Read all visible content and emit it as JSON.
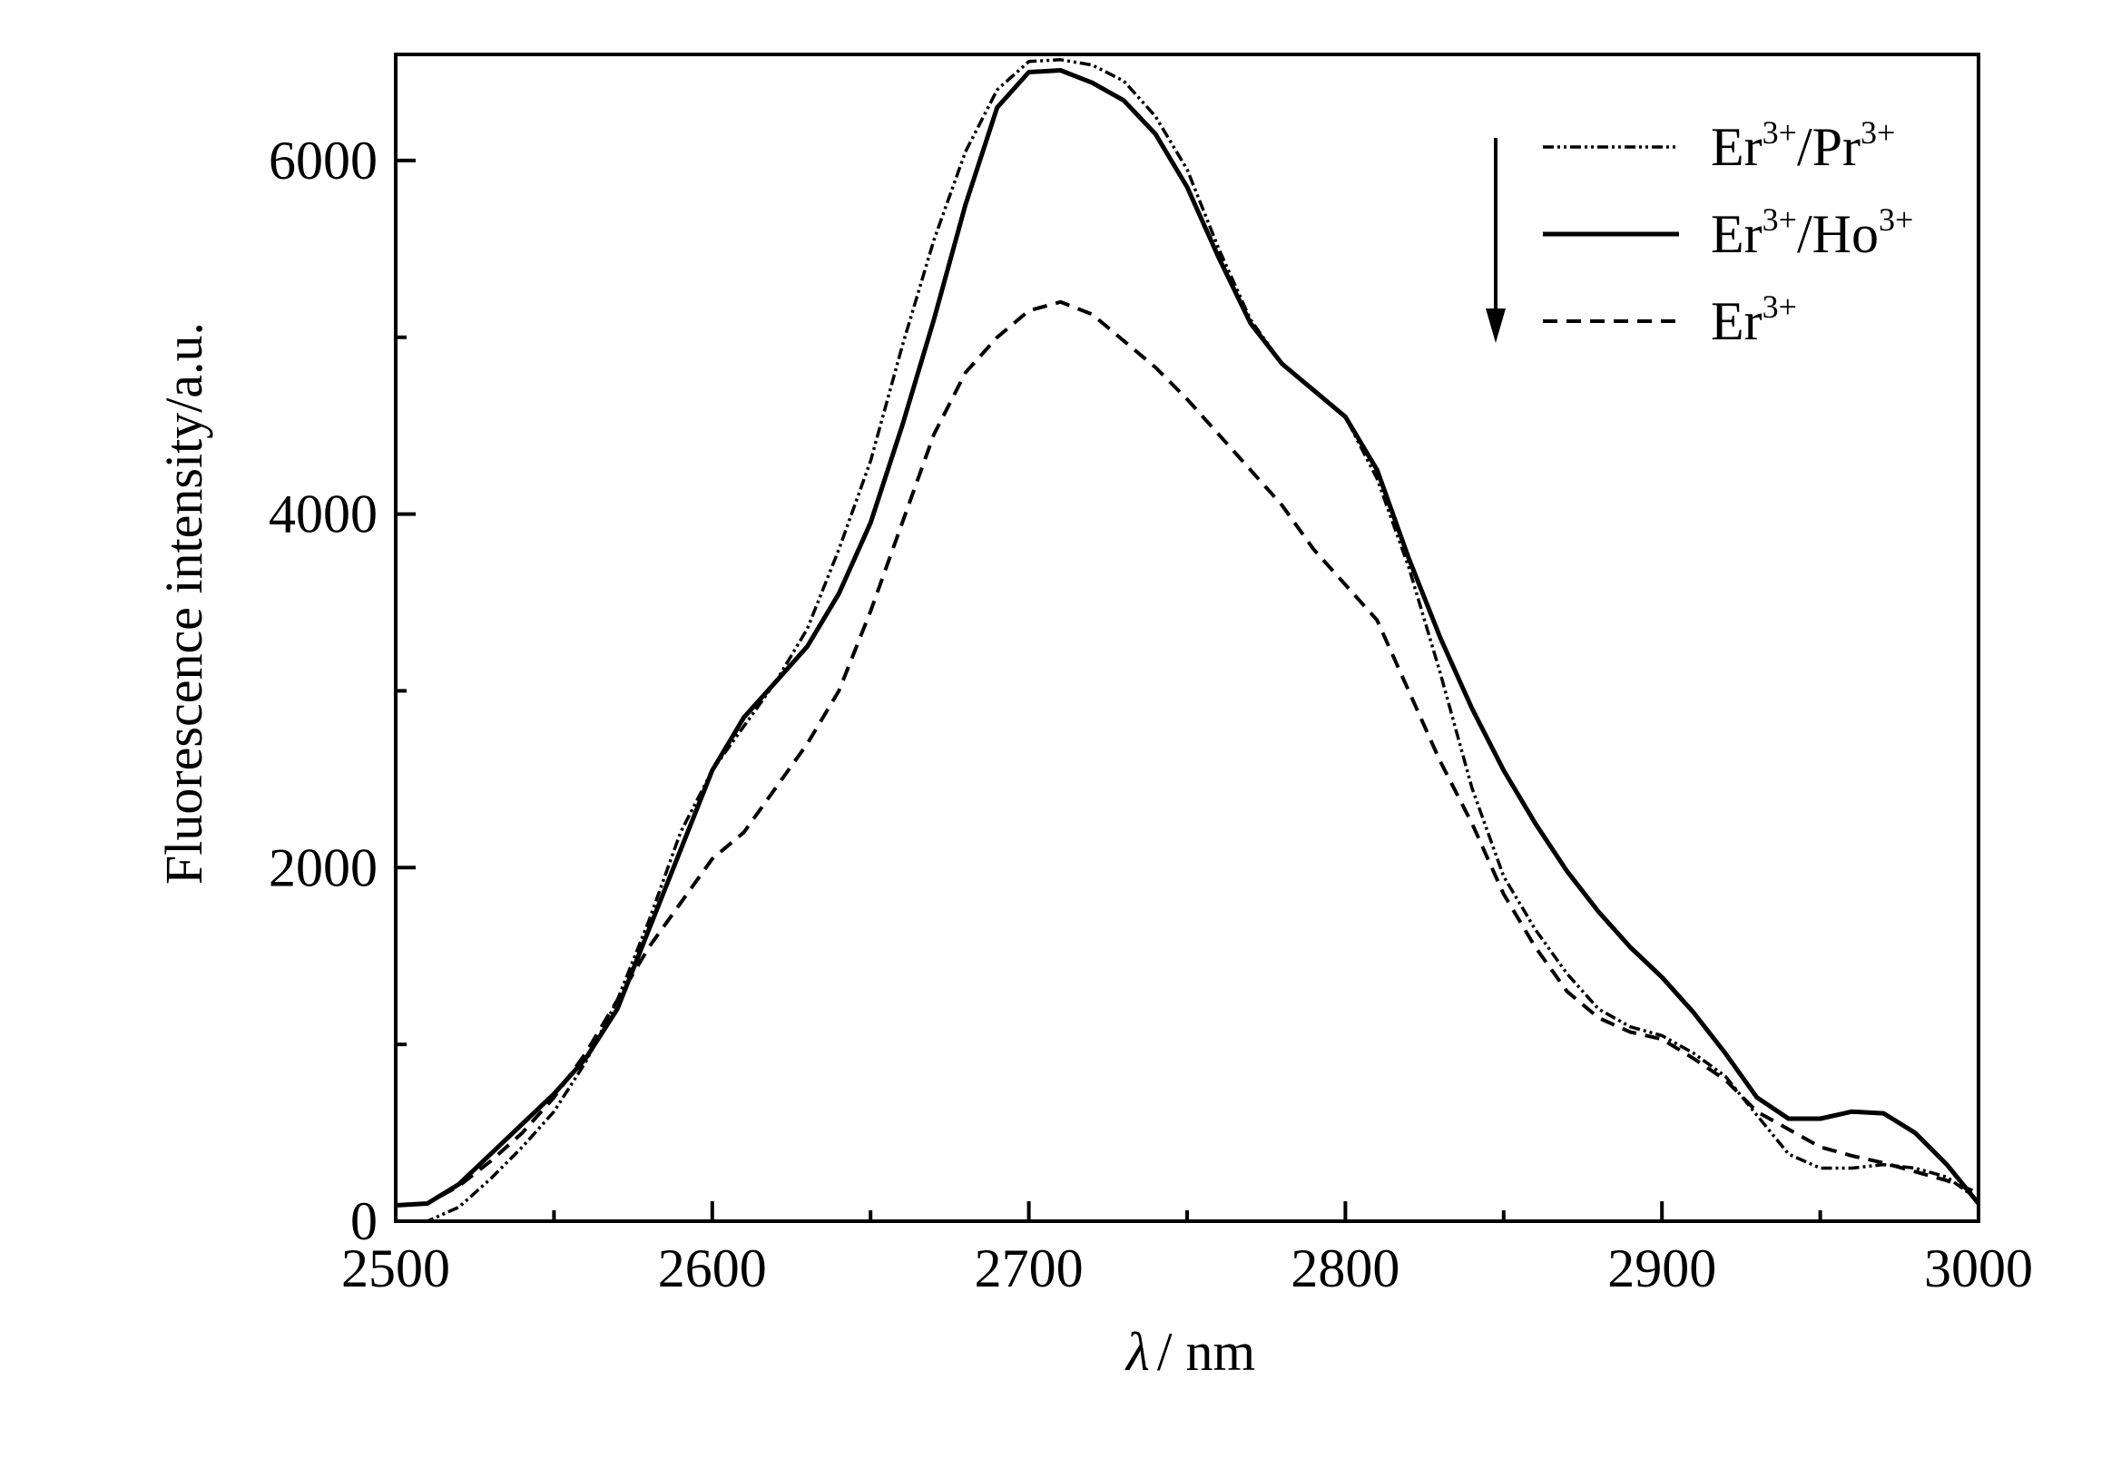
{
  "chart_data": {
    "type": "line",
    "title": "",
    "xlabel_symbol": "λ",
    "xlabel_unit": "/ nm",
    "ylabel": "Fluorescence intensity/a.u.",
    "xlim": [
      2500,
      3000
    ],
    "ylim": [
      0,
      6600
    ],
    "x_ticks": [
      2500,
      2600,
      2700,
      2800,
      2900,
      3000
    ],
    "x_minor_step": 50,
    "y_ticks": [
      0,
      2000,
      4000,
      6000
    ],
    "y_minor_step": 1000,
    "grid": false,
    "legend_position": "top-right",
    "legend_arrow": "down",
    "series": [
      {
        "name": "Er3+/Pr3+",
        "legend_base": "Er",
        "legend_sup1": "3+",
        "legend_mid": "/Pr",
        "legend_sup2": "3+",
        "style": "dash-dot-dot",
        "x": [
          2500,
          2510,
          2520,
          2530,
          2540,
          2550,
          2560,
          2570,
          2580,
          2590,
          2600,
          2610,
          2620,
          2630,
          2640,
          2650,
          2660,
          2670,
          2680,
          2690,
          2700,
          2710,
          2720,
          2730,
          2740,
          2750,
          2760,
          2770,
          2780,
          2790,
          2800,
          2810,
          2820,
          2830,
          2840,
          2850,
          2860,
          2870,
          2880,
          2890,
          2900,
          2910,
          2920,
          2930,
          2940,
          2950,
          2960,
          2970,
          2980,
          2990,
          3000
        ],
        "values": [
          0,
          0,
          80,
          240,
          420,
          620,
          900,
          1250,
          1700,
          2200,
          2550,
          2800,
          3050,
          3350,
          3800,
          4300,
          4950,
          5550,
          6050,
          6400,
          6560,
          6570,
          6540,
          6450,
          6250,
          5950,
          5500,
          5100,
          4850,
          4700,
          4550,
          4200,
          3700,
          3100,
          2450,
          1950,
          1650,
          1400,
          1200,
          1100,
          1050,
          950,
          820,
          600,
          380,
          300,
          300,
          320,
          300,
          250,
          120
        ]
      },
      {
        "name": "Er3+/Ho3+",
        "legend_base": "Er",
        "legend_sup1": "3+",
        "legend_mid": "/Ho",
        "legend_sup2": "3+",
        "style": "solid",
        "x": [
          2500,
          2510,
          2520,
          2530,
          2540,
          2550,
          2560,
          2570,
          2580,
          2590,
          2600,
          2610,
          2620,
          2630,
          2640,
          2650,
          2660,
          2670,
          2680,
          2690,
          2700,
          2710,
          2720,
          2730,
          2740,
          2750,
          2760,
          2770,
          2780,
          2790,
          2800,
          2810,
          2820,
          2830,
          2840,
          2850,
          2860,
          2870,
          2880,
          2890,
          2900,
          2910,
          2920,
          2930,
          2940,
          2950,
          2960,
          2970,
          2980,
          2990,
          3000
        ],
        "values": [
          90,
          100,
          210,
          380,
          550,
          720,
          920,
          1200,
          1650,
          2100,
          2550,
          2850,
          3050,
          3250,
          3550,
          3950,
          4500,
          5100,
          5750,
          6300,
          6500,
          6510,
          6440,
          6340,
          6150,
          5850,
          5450,
          5080,
          4850,
          4700,
          4550,
          4250,
          3750,
          3300,
          2900,
          2550,
          2250,
          1980,
          1750,
          1550,
          1380,
          1180,
          950,
          700,
          580,
          580,
          620,
          610,
          500,
          320,
          100
        ]
      },
      {
        "name": "Er3+",
        "legend_base": "Er",
        "legend_sup1": "3+",
        "legend_mid": "",
        "legend_sup2": "",
        "style": "dashed",
        "x": [
          2500,
          2510,
          2520,
          2530,
          2540,
          2550,
          2560,
          2570,
          2580,
          2590,
          2600,
          2610,
          2620,
          2630,
          2640,
          2650,
          2660,
          2670,
          2680,
          2690,
          2700,
          2710,
          2720,
          2730,
          2740,
          2750,
          2760,
          2770,
          2780,
          2790,
          2800,
          2810,
          2820,
          2830,
          2840,
          2850,
          2860,
          2870,
          2880,
          2890,
          2900,
          2910,
          2920,
          2930,
          2940,
          2950,
          2960,
          2970,
          2980,
          2990,
          3000
        ],
        "values": [
          90,
          100,
          200,
          340,
          500,
          700,
          950,
          1250,
          1550,
          1800,
          2050,
          2200,
          2450,
          2700,
          3000,
          3450,
          3950,
          4450,
          4800,
          5000,
          5150,
          5200,
          5130,
          4980,
          4830,
          4650,
          4450,
          4250,
          4050,
          3800,
          3600,
          3400,
          3000,
          2600,
          2250,
          1850,
          1550,
          1300,
          1150,
          1070,
          1030,
          920,
          800,
          620,
          520,
          420,
          370,
          330,
          280,
          230,
          160
        ]
      }
    ]
  }
}
